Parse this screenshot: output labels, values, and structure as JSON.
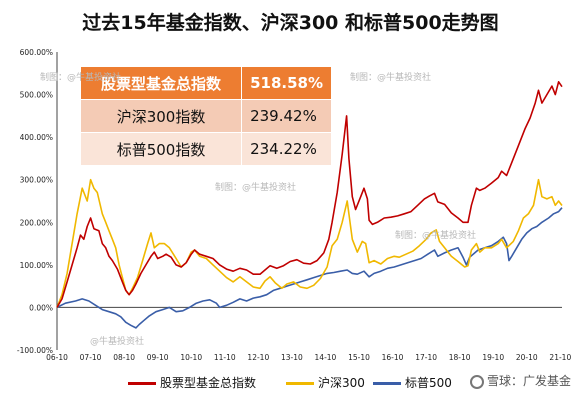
{
  "title": "过去15年基金指数、沪深300 和标普500走势图",
  "table": [
    {
      "name": "股票型基金总指数",
      "value": "518.58%"
    },
    {
      "name": "沪深300指数",
      "value": "239.42%"
    },
    {
      "name": "标普500指数",
      "value": "234.22%"
    }
  ],
  "watermarks": [
    "制图：@牛基投资社",
    "制图：@牛基投资社",
    "制图：@牛基投资社",
    "制图：@牛基投资社",
    "@牛基投资社"
  ],
  "credit": "雪球：广发基金",
  "colors": {
    "fund": "#c00000",
    "csi": "#f0b800",
    "sp": "#3a5ea8",
    "header": "#ed7d31"
  },
  "chart_data": {
    "type": "line",
    "title": "过去15年基金指数、沪深300 和标普500走势图",
    "xlabel": "",
    "ylabel": "",
    "x_ticks": [
      "06-10",
      "07-10",
      "08-10",
      "09-10",
      "10-10",
      "11-10",
      "12-10",
      "13-10",
      "14-10",
      "15-10",
      "16-10",
      "17-10",
      "18-10",
      "19-10",
      "20-10",
      "21-10"
    ],
    "y_ticks": [
      "600.00%",
      "500.00%",
      "400.00%",
      "300.00%",
      "200.00%",
      "100.00%",
      "0.00%",
      "-100.00%"
    ],
    "ylim": [
      -100,
      600
    ],
    "xlim": [
      2006.75,
      2021.8
    ],
    "legend": "bottom",
    "grid": false,
    "series": [
      {
        "name": "股票型基金总指数",
        "color": "#c00000",
        "points": [
          [
            2006.75,
            0
          ],
          [
            2006.9,
            20
          ],
          [
            2007.05,
            60
          ],
          [
            2007.2,
            100
          ],
          [
            2007.35,
            140
          ],
          [
            2007.45,
            170
          ],
          [
            2007.55,
            160
          ],
          [
            2007.65,
            190
          ],
          [
            2007.75,
            210
          ],
          [
            2007.85,
            185
          ],
          [
            2008.0,
            180
          ],
          [
            2008.1,
            150
          ],
          [
            2008.2,
            140
          ],
          [
            2008.3,
            120
          ],
          [
            2008.4,
            110
          ],
          [
            2008.55,
            90
          ],
          [
            2008.7,
            60
          ],
          [
            2008.8,
            40
          ],
          [
            2008.9,
            30
          ],
          [
            2009.0,
            40
          ],
          [
            2009.1,
            55
          ],
          [
            2009.25,
            80
          ],
          [
            2009.4,
            100
          ],
          [
            2009.55,
            120
          ],
          [
            2009.65,
            130
          ],
          [
            2009.75,
            115
          ],
          [
            2009.9,
            120
          ],
          [
            2010.0,
            125
          ],
          [
            2010.15,
            118
          ],
          [
            2010.3,
            100
          ],
          [
            2010.45,
            95
          ],
          [
            2010.6,
            105
          ],
          [
            2010.75,
            125
          ],
          [
            2010.85,
            135
          ],
          [
            2011.0,
            125
          ],
          [
            2011.2,
            120
          ],
          [
            2011.4,
            115
          ],
          [
            2011.6,
            100
          ],
          [
            2011.8,
            90
          ],
          [
            2012.0,
            85
          ],
          [
            2012.2,
            92
          ],
          [
            2012.4,
            88
          ],
          [
            2012.6,
            78
          ],
          [
            2012.8,
            78
          ],
          [
            2012.95,
            88
          ],
          [
            2013.1,
            98
          ],
          [
            2013.3,
            92
          ],
          [
            2013.5,
            98
          ],
          [
            2013.7,
            108
          ],
          [
            2013.9,
            112
          ],
          [
            2014.1,
            104
          ],
          [
            2014.3,
            102
          ],
          [
            2014.5,
            110
          ],
          [
            2014.7,
            128
          ],
          [
            2014.85,
            160
          ],
          [
            2014.95,
            200
          ],
          [
            2015.1,
            270
          ],
          [
            2015.25,
            360
          ],
          [
            2015.38,
            450
          ],
          [
            2015.45,
            350
          ],
          [
            2015.55,
            260
          ],
          [
            2015.65,
            230
          ],
          [
            2015.8,
            260
          ],
          [
            2015.9,
            280
          ],
          [
            2016.0,
            255
          ],
          [
            2016.05,
            205
          ],
          [
            2016.15,
            195
          ],
          [
            2016.3,
            200
          ],
          [
            2016.5,
            210
          ],
          [
            2016.7,
            212
          ],
          [
            2016.9,
            215
          ],
          [
            2017.1,
            220
          ],
          [
            2017.3,
            225
          ],
          [
            2017.5,
            240
          ],
          [
            2017.7,
            255
          ],
          [
            2017.85,
            262
          ],
          [
            2018.0,
            268
          ],
          [
            2018.1,
            248
          ],
          [
            2018.3,
            242
          ],
          [
            2018.5,
            222
          ],
          [
            2018.7,
            210
          ],
          [
            2018.85,
            200
          ],
          [
            2019.0,
            200
          ],
          [
            2019.1,
            240
          ],
          [
            2019.25,
            280
          ],
          [
            2019.35,
            275
          ],
          [
            2019.5,
            280
          ],
          [
            2019.7,
            292
          ],
          [
            2019.9,
            305
          ],
          [
            2020.0,
            320
          ],
          [
            2020.15,
            310
          ],
          [
            2020.3,
            340
          ],
          [
            2020.5,
            380
          ],
          [
            2020.7,
            420
          ],
          [
            2020.85,
            445
          ],
          [
            2021.0,
            480
          ],
          [
            2021.1,
            510
          ],
          [
            2021.2,
            480
          ],
          [
            2021.35,
            500
          ],
          [
            2021.5,
            520
          ],
          [
            2021.6,
            500
          ],
          [
            2021.7,
            530
          ],
          [
            2021.8,
            518.58
          ]
        ]
      },
      {
        "name": "沪深300",
        "color": "#f0b800",
        "points": [
          [
            2006.75,
            0
          ],
          [
            2006.9,
            30
          ],
          [
            2007.05,
            80
          ],
          [
            2007.2,
            150
          ],
          [
            2007.35,
            220
          ],
          [
            2007.5,
            280
          ],
          [
            2007.65,
            250
          ],
          [
            2007.75,
            300
          ],
          [
            2007.85,
            280
          ],
          [
            2007.95,
            270
          ],
          [
            2008.1,
            220
          ],
          [
            2008.2,
            200
          ],
          [
            2008.3,
            180
          ],
          [
            2008.4,
            160
          ],
          [
            2008.5,
            140
          ],
          [
            2008.6,
            100
          ],
          [
            2008.7,
            70
          ],
          [
            2008.8,
            40
          ],
          [
            2008.9,
            30
          ],
          [
            2009.0,
            45
          ],
          [
            2009.15,
            70
          ],
          [
            2009.3,
            110
          ],
          [
            2009.45,
            150
          ],
          [
            2009.55,
            175
          ],
          [
            2009.65,
            140
          ],
          [
            2009.8,
            150
          ],
          [
            2009.95,
            150
          ],
          [
            2010.1,
            140
          ],
          [
            2010.3,
            115
          ],
          [
            2010.45,
            95
          ],
          [
            2010.6,
            105
          ],
          [
            2010.75,
            130
          ],
          [
            2010.85,
            135
          ],
          [
            2011.0,
            120
          ],
          [
            2011.2,
            115
          ],
          [
            2011.4,
            100
          ],
          [
            2011.6,
            85
          ],
          [
            2011.8,
            70
          ],
          [
            2012.0,
            60
          ],
          [
            2012.2,
            72
          ],
          [
            2012.4,
            60
          ],
          [
            2012.6,
            48
          ],
          [
            2012.8,
            45
          ],
          [
            2012.95,
            62
          ],
          [
            2013.1,
            72
          ],
          [
            2013.25,
            58
          ],
          [
            2013.45,
            45
          ],
          [
            2013.6,
            55
          ],
          [
            2013.8,
            60
          ],
          [
            2014.0,
            48
          ],
          [
            2014.2,
            45
          ],
          [
            2014.4,
            52
          ],
          [
            2014.6,
            68
          ],
          [
            2014.8,
            95
          ],
          [
            2014.95,
            145
          ],
          [
            2015.1,
            160
          ],
          [
            2015.25,
            200
          ],
          [
            2015.4,
            250
          ],
          [
            2015.45,
            220
          ],
          [
            2015.55,
            160
          ],
          [
            2015.7,
            130
          ],
          [
            2015.85,
            155
          ],
          [
            2015.95,
            150
          ],
          [
            2016.05,
            105
          ],
          [
            2016.2,
            110
          ],
          [
            2016.4,
            102
          ],
          [
            2016.6,
            115
          ],
          [
            2016.8,
            120
          ],
          [
            2016.95,
            118
          ],
          [
            2017.15,
            125
          ],
          [
            2017.35,
            132
          ],
          [
            2017.55,
            145
          ],
          [
            2017.75,
            160
          ],
          [
            2017.9,
            175
          ],
          [
            2018.05,
            182
          ],
          [
            2018.15,
            155
          ],
          [
            2018.3,
            140
          ],
          [
            2018.5,
            120
          ],
          [
            2018.7,
            108
          ],
          [
            2018.9,
            95
          ],
          [
            2019.0,
            98
          ],
          [
            2019.1,
            135
          ],
          [
            2019.25,
            150
          ],
          [
            2019.35,
            130
          ],
          [
            2019.5,
            140
          ],
          [
            2019.7,
            140
          ],
          [
            2019.9,
            150
          ],
          [
            2020.0,
            160
          ],
          [
            2020.15,
            140
          ],
          [
            2020.35,
            155
          ],
          [
            2020.5,
            180
          ],
          [
            2020.65,
            210
          ],
          [
            2020.8,
            220
          ],
          [
            2020.95,
            240
          ],
          [
            2021.1,
            300
          ],
          [
            2021.2,
            260
          ],
          [
            2021.35,
            255
          ],
          [
            2021.5,
            260
          ],
          [
            2021.6,
            240
          ],
          [
            2021.7,
            250
          ],
          [
            2021.8,
            239.42
          ]
        ]
      },
      {
        "name": "标普500",
        "color": "#3a5ea8",
        "points": [
          [
            2006.75,
            0
          ],
          [
            2007.0,
            10
          ],
          [
            2007.3,
            15
          ],
          [
            2007.5,
            20
          ],
          [
            2007.7,
            15
          ],
          [
            2007.9,
            5
          ],
          [
            2008.1,
            -5
          ],
          [
            2008.3,
            -10
          ],
          [
            2008.5,
            -15
          ],
          [
            2008.65,
            -22
          ],
          [
            2008.8,
            -35
          ],
          [
            2008.95,
            -42
          ],
          [
            2009.1,
            -48
          ],
          [
            2009.2,
            -40
          ],
          [
            2009.35,
            -30
          ],
          [
            2009.5,
            -20
          ],
          [
            2009.7,
            -10
          ],
          [
            2009.9,
            -5
          ],
          [
            2010.1,
            0
          ],
          [
            2010.3,
            -10
          ],
          [
            2010.5,
            -8
          ],
          [
            2010.7,
            0
          ],
          [
            2010.9,
            10
          ],
          [
            2011.1,
            15
          ],
          [
            2011.3,
            18
          ],
          [
            2011.5,
            10
          ],
          [
            2011.6,
            0
          ],
          [
            2011.8,
            5
          ],
          [
            2012.0,
            12
          ],
          [
            2012.2,
            20
          ],
          [
            2012.4,
            15
          ],
          [
            2012.6,
            22
          ],
          [
            2012.8,
            25
          ],
          [
            2013.0,
            30
          ],
          [
            2013.2,
            40
          ],
          [
            2013.4,
            45
          ],
          [
            2013.6,
            50
          ],
          [
            2013.8,
            55
          ],
          [
            2014.0,
            60
          ],
          [
            2014.2,
            65
          ],
          [
            2014.4,
            70
          ],
          [
            2014.6,
            75
          ],
          [
            2014.8,
            80
          ],
          [
            2015.0,
            82
          ],
          [
            2015.2,
            85
          ],
          [
            2015.4,
            88
          ],
          [
            2015.55,
            80
          ],
          [
            2015.7,
            78
          ],
          [
            2015.9,
            85
          ],
          [
            2016.05,
            72
          ],
          [
            2016.2,
            80
          ],
          [
            2016.4,
            85
          ],
          [
            2016.6,
            92
          ],
          [
            2016.8,
            95
          ],
          [
            2017.0,
            100
          ],
          [
            2017.2,
            105
          ],
          [
            2017.4,
            110
          ],
          [
            2017.6,
            115
          ],
          [
            2017.8,
            125
          ],
          [
            2018.0,
            135
          ],
          [
            2018.1,
            120
          ],
          [
            2018.3,
            128
          ],
          [
            2018.5,
            135
          ],
          [
            2018.7,
            140
          ],
          [
            2018.85,
            118
          ],
          [
            2018.95,
            100
          ],
          [
            2019.05,
            118
          ],
          [
            2019.3,
            135
          ],
          [
            2019.5,
            140
          ],
          [
            2019.7,
            145
          ],
          [
            2019.9,
            155
          ],
          [
            2020.05,
            165
          ],
          [
            2020.15,
            150
          ],
          [
            2020.22,
            110
          ],
          [
            2020.3,
            120
          ],
          [
            2020.45,
            140
          ],
          [
            2020.6,
            160
          ],
          [
            2020.75,
            175
          ],
          [
            2020.9,
            185
          ],
          [
            2021.05,
            190
          ],
          [
            2021.2,
            200
          ],
          [
            2021.4,
            210
          ],
          [
            2021.55,
            220
          ],
          [
            2021.7,
            225
          ],
          [
            2021.8,
            234.22
          ]
        ]
      }
    ]
  }
}
